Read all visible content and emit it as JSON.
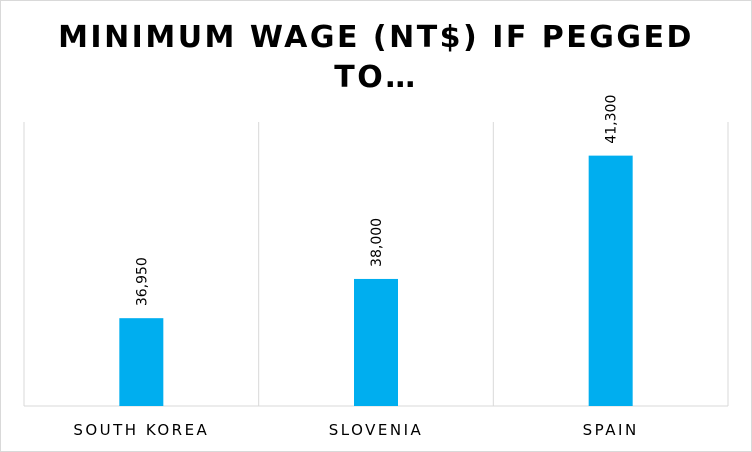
{
  "chart_data": {
    "type": "bar",
    "title_lines": [
      "MINIMUM WAGE (NT$) IF PEGGED",
      "TO…"
    ],
    "categories": [
      "SOUTH KOREA",
      "SLOVENIA",
      "SPAIN"
    ],
    "values": [
      36950,
      38000,
      41300
    ],
    "value_labels": [
      "36,950",
      "38,000",
      "41,300"
    ],
    "xlabel": "",
    "ylabel": "",
    "ylim": [
      34600,
      42200
    ],
    "grid": "vertical category separators",
    "legend": "none",
    "bar_color": "#00AEEF",
    "gridline_color": "#d9d9d9"
  }
}
